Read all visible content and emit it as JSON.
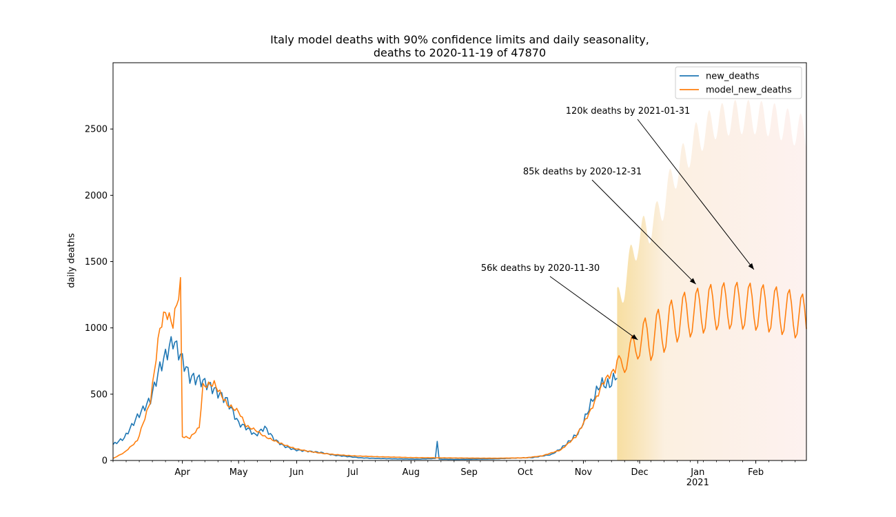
{
  "chart_data": {
    "type": "line",
    "title_lines": [
      "Italy model deaths with 90% confidence limits and daily seasonality,",
      "deaths to 2020-11-19 of 47870"
    ],
    "xlabel": "",
    "ylabel": "daily deaths",
    "x_range": [
      "2020-02-24",
      "2021-02-28"
    ],
    "ylim": [
      0,
      3000
    ],
    "y_ticks": [
      0,
      500,
      1000,
      1500,
      2000,
      2500
    ],
    "x_ticks": [
      {
        "date": "2020-04-01",
        "label": "Apr"
      },
      {
        "date": "2020-05-01",
        "label": "May"
      },
      {
        "date": "2020-06-01",
        "label": "Jun"
      },
      {
        "date": "2020-07-01",
        "label": "Jul"
      },
      {
        "date": "2020-08-01",
        "label": "Aug"
      },
      {
        "date": "2020-09-01",
        "label": "Sep"
      },
      {
        "date": "2020-10-01",
        "label": "Oct"
      },
      {
        "date": "2020-11-01",
        "label": "Nov"
      },
      {
        "date": "2020-12-01",
        "label": "Dec"
      },
      {
        "date": "2021-01-01",
        "label": "Jan",
        "sublabel": "2021"
      },
      {
        "date": "2021-02-01",
        "label": "Feb"
      }
    ],
    "grid": false,
    "legend": "top-right",
    "series": [
      {
        "name": "new_deaths",
        "color": "#1f77b4",
        "points": [
          [
            "2020-02-24",
            120
          ],
          [
            "2020-03-01",
            170
          ],
          [
            "2020-03-08",
            330
          ],
          [
            "2020-03-15",
            460
          ],
          [
            "2020-03-20",
            700
          ],
          [
            "2020-03-27",
            910
          ],
          [
            "2020-04-01",
            760
          ],
          [
            "2020-04-05",
            630
          ],
          [
            "2020-04-10",
            610
          ],
          [
            "2020-04-15",
            570
          ],
          [
            "2020-04-20",
            510
          ],
          [
            "2020-04-25",
            450
          ],
          [
            "2020-05-01",
            280
          ],
          [
            "2020-05-05",
            250
          ],
          [
            "2020-05-10",
            190
          ],
          [
            "2020-05-15",
            250
          ],
          [
            "2020-05-20",
            160
          ],
          [
            "2020-05-25",
            110
          ],
          [
            "2020-05-31",
            80
          ],
          [
            "2020-06-07",
            70
          ],
          [
            "2020-06-14",
            60
          ],
          [
            "2020-06-21",
            40
          ],
          [
            "2020-06-28",
            30
          ],
          [
            "2020-07-05",
            20
          ],
          [
            "2020-07-15",
            15
          ],
          [
            "2020-07-25",
            12
          ],
          [
            "2020-08-05",
            10
          ],
          [
            "2020-08-14",
            15
          ],
          [
            "2020-08-15",
            155
          ],
          [
            "2020-08-16",
            10
          ],
          [
            "2020-08-25",
            8
          ],
          [
            "2020-09-05",
            10
          ],
          [
            "2020-09-15",
            12
          ],
          [
            "2020-09-25",
            18
          ],
          [
            "2020-10-05",
            22
          ],
          [
            "2020-10-15",
            45
          ],
          [
            "2020-10-20",
            90
          ],
          [
            "2020-10-25",
            150
          ],
          [
            "2020-10-30",
            220
          ],
          [
            "2020-11-05",
            430
          ],
          [
            "2020-11-10",
            580
          ],
          [
            "2020-11-15",
            570
          ],
          [
            "2020-11-19",
            650
          ]
        ]
      },
      {
        "name": "model_new_deaths",
        "color": "#ff7f0e",
        "points": [
          [
            "2020-02-24",
            15
          ],
          [
            "2020-03-01",
            60
          ],
          [
            "2020-03-08",
            150
          ],
          [
            "2020-03-15",
            450
          ],
          [
            "2020-03-20",
            1000
          ],
          [
            "2020-03-23",
            1120
          ],
          [
            "2020-03-27",
            1030
          ],
          [
            "2020-03-31",
            1330
          ],
          [
            "2020-04-01",
            180
          ],
          [
            "2020-04-05",
            170
          ],
          [
            "2020-04-10",
            250
          ],
          [
            "2020-04-12",
            560
          ],
          [
            "2020-04-18",
            580
          ],
          [
            "2020-04-25",
            420
          ],
          [
            "2020-05-01",
            370
          ],
          [
            "2020-05-05",
            260
          ],
          [
            "2020-05-10",
            230
          ],
          [
            "2020-05-15",
            180
          ],
          [
            "2020-05-20",
            150
          ],
          [
            "2020-05-25",
            120
          ],
          [
            "2020-05-31",
            90
          ],
          [
            "2020-06-07",
            70
          ],
          [
            "2020-06-14",
            55
          ],
          [
            "2020-06-21",
            45
          ],
          [
            "2020-07-01",
            35
          ],
          [
            "2020-07-15",
            28
          ],
          [
            "2020-08-01",
            22
          ],
          [
            "2020-08-15",
            20
          ],
          [
            "2020-09-01",
            18
          ],
          [
            "2020-09-15",
            17
          ],
          [
            "2020-10-01",
            20
          ],
          [
            "2020-10-10",
            35
          ],
          [
            "2020-10-20",
            80
          ],
          [
            "2020-10-28",
            180
          ],
          [
            "2020-11-05",
            380
          ],
          [
            "2020-11-12",
            600
          ],
          [
            "2020-11-19",
            700
          ],
          [
            "2020-11-26",
            800
          ],
          [
            "2020-11-30",
            900
          ],
          [
            "2020-12-07",
            930
          ],
          [
            "2020-12-15",
            1000
          ],
          [
            "2020-12-22",
            1080
          ],
          [
            "2020-12-31",
            1120
          ],
          [
            "2021-01-10",
            1160
          ],
          [
            "2021-01-20",
            1170
          ],
          [
            "2021-01-31",
            1160
          ],
          [
            "2021-02-10",
            1140
          ],
          [
            "2021-02-20",
            1110
          ],
          [
            "2021-02-28",
            1070
          ]
        ],
        "weekly_amplitude": 180,
        "forecast_from": "2020-11-19"
      }
    ],
    "confidence_band": {
      "label": "90% confidence limits",
      "from": "2020-11-19",
      "to": "2021-02-28",
      "lower": 0,
      "upper_points": [
        [
          "2020-11-19",
          1300
        ],
        [
          "2020-11-30",
          1800
        ],
        [
          "2020-12-10",
          1950
        ],
        [
          "2020-12-20",
          2300
        ],
        [
          "2020-12-31",
          2550
        ],
        [
          "2021-01-10",
          2680
        ],
        [
          "2021-01-20",
          2720
        ],
        [
          "2021-01-31",
          2720
        ],
        [
          "2021-02-10",
          2700
        ],
        [
          "2021-02-28",
          2600
        ]
      ],
      "colors": [
        "#f5d68a",
        "#fbeedd",
        "#fdf0ee"
      ]
    },
    "annotations": [
      {
        "text": "56k deaths by 2020-11-30",
        "target": [
          "2020-11-30",
          910
        ]
      },
      {
        "text": "85k deaths by 2020-12-31",
        "target": [
          "2020-12-31",
          1330
        ]
      },
      {
        "text": "120k deaths by 2021-01-31",
        "target": [
          "2021-01-31",
          1440
        ]
      }
    ]
  }
}
